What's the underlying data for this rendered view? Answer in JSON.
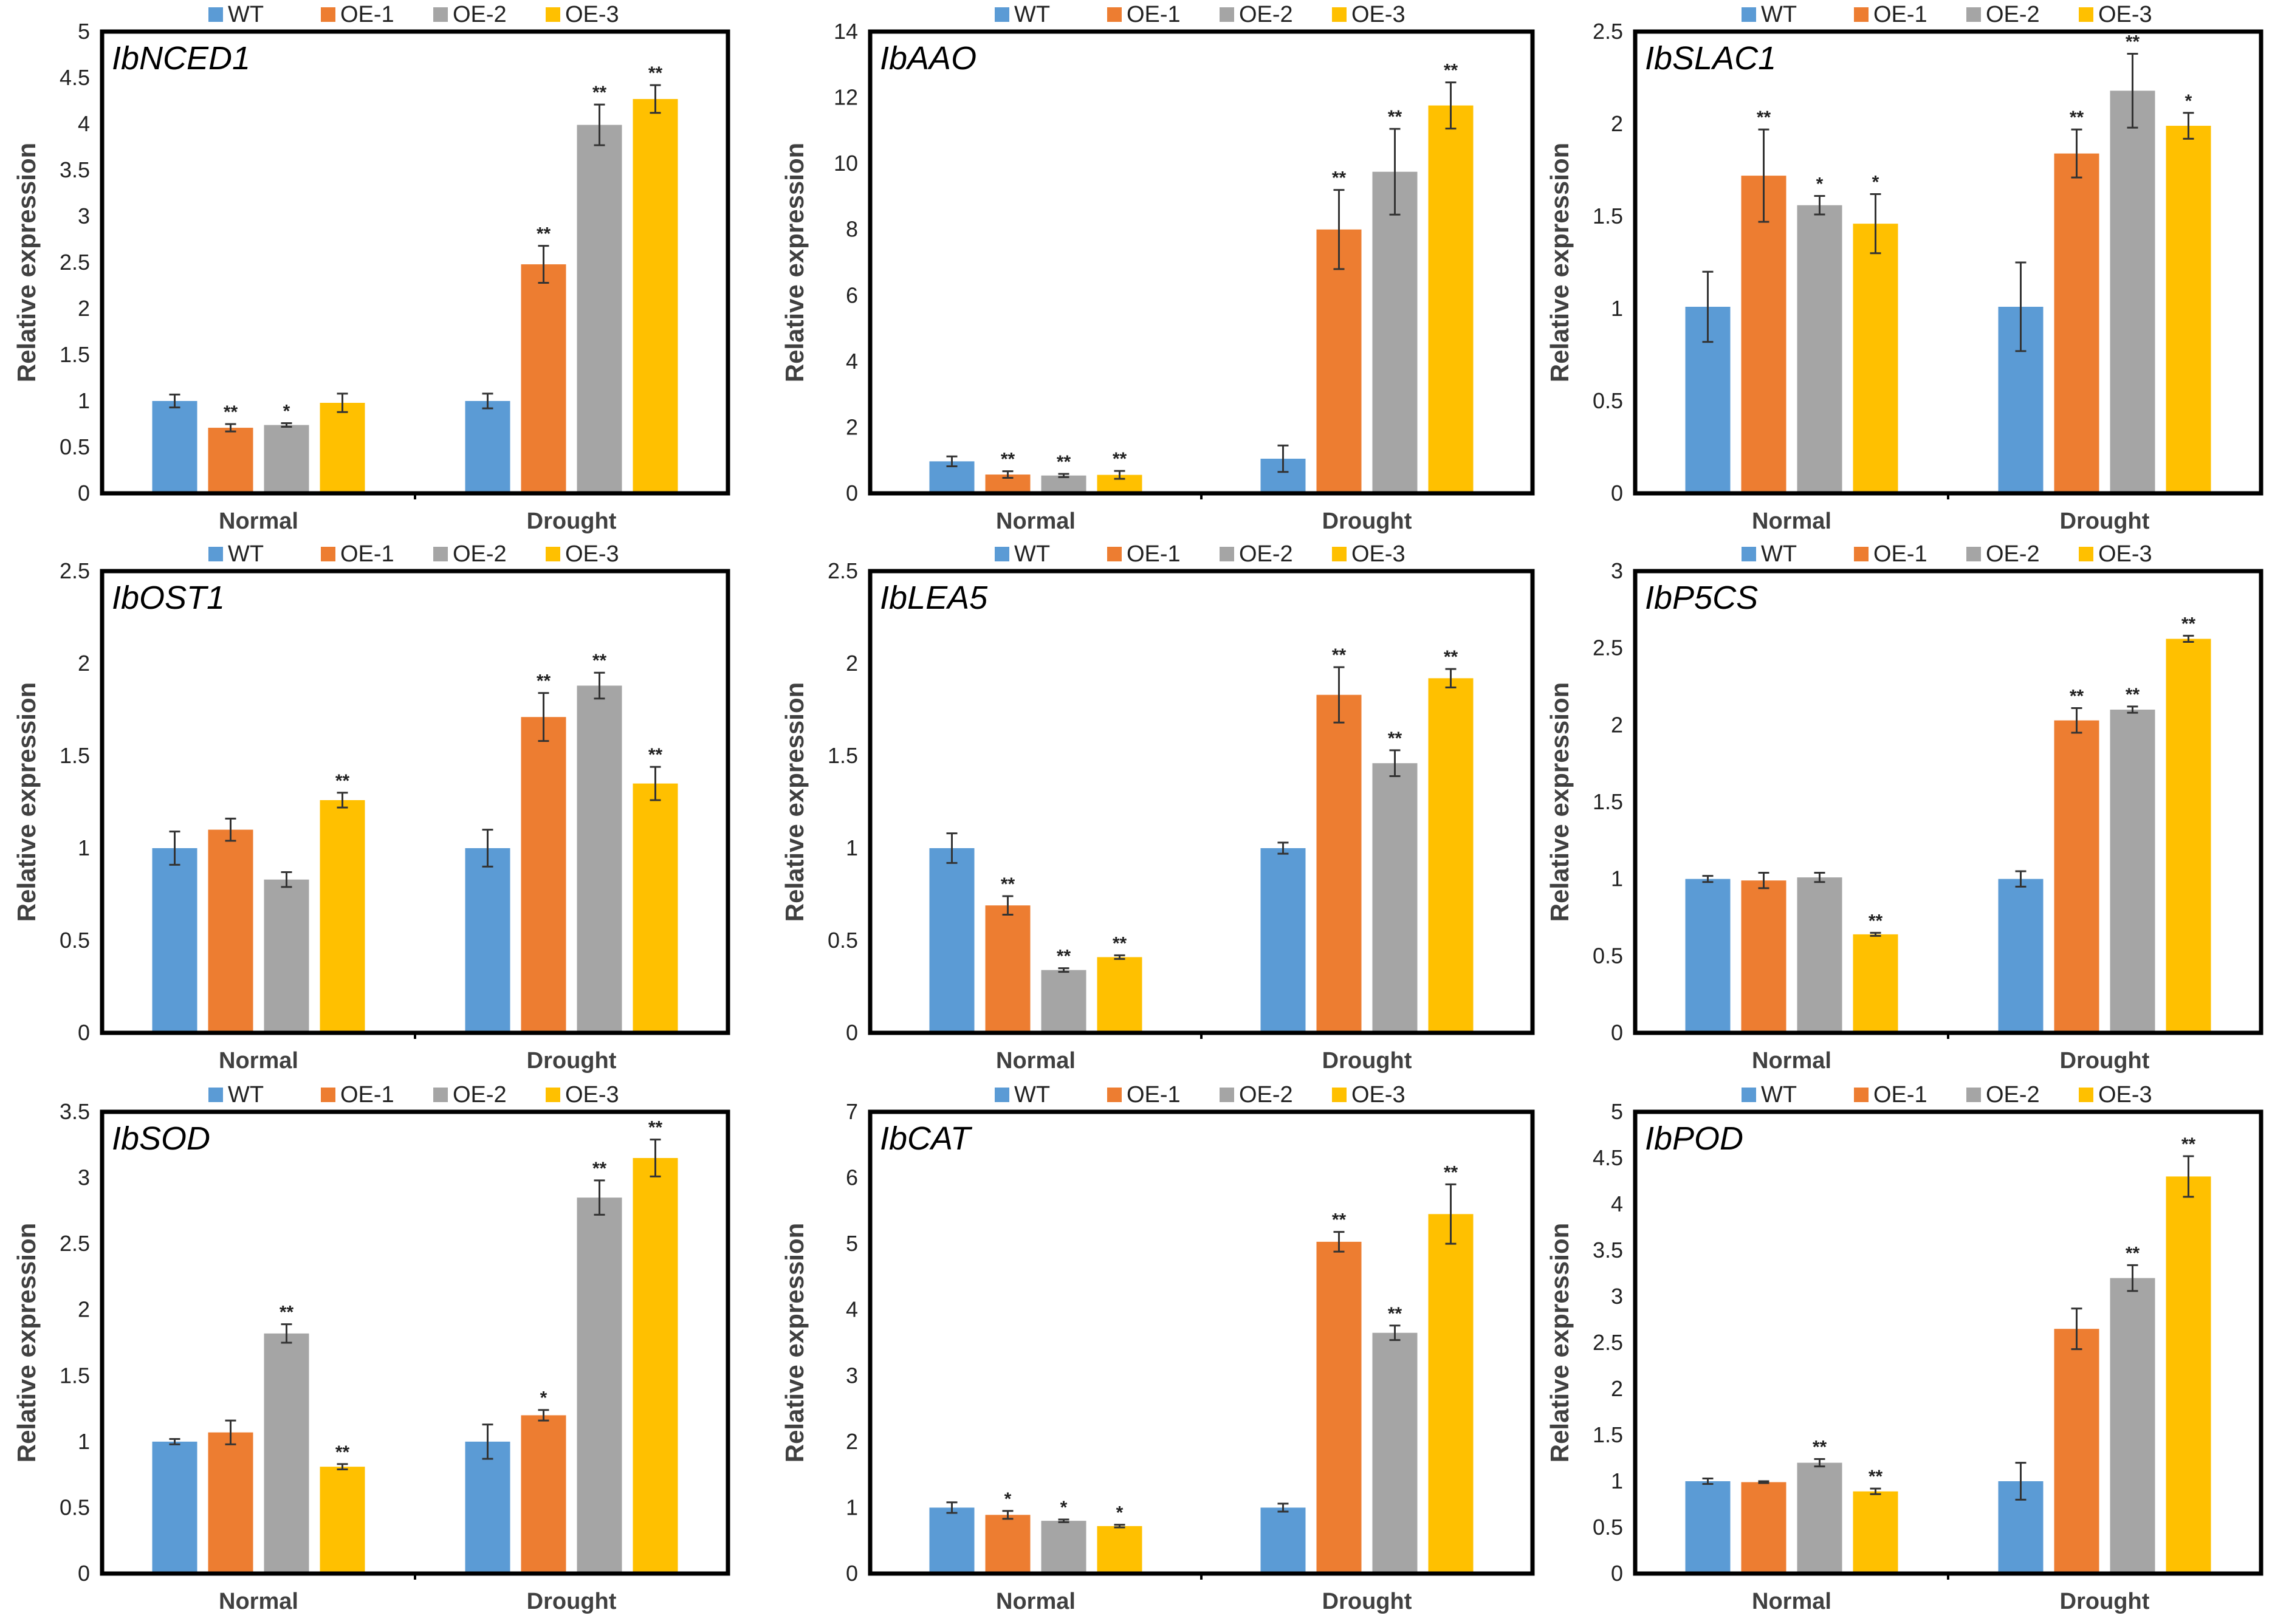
{
  "chart_data": [
    {
      "type": "bar",
      "title": "IbNCED1",
      "ylabel": "Relative expression",
      "categories": [
        "Normal",
        "Drought"
      ],
      "ylim": [
        0,
        5
      ],
      "yticks": [
        0,
        0.5,
        1,
        1.5,
        2,
        2.5,
        3,
        3.5,
        4,
        4.5,
        5
      ],
      "series": [
        {
          "name": "WT",
          "color": "#5b9bd5",
          "values": [
            1.0,
            1.0
          ],
          "errors": [
            0.07,
            0.08
          ],
          "sig": [
            "",
            ""
          ]
        },
        {
          "name": "OE-1",
          "color": "#ed7d31",
          "values": [
            0.71,
            2.48
          ],
          "errors": [
            0.04,
            0.2
          ],
          "sig": [
            "**",
            "**"
          ]
        },
        {
          "name": "OE-2",
          "color": "#a5a5a5",
          "values": [
            0.74,
            3.99
          ],
          "errors": [
            0.02,
            0.22
          ],
          "sig": [
            "*",
            "**"
          ]
        },
        {
          "name": "OE-3",
          "color": "#ffc000",
          "values": [
            0.98,
            4.27
          ],
          "errors": [
            0.1,
            0.15
          ],
          "sig": [
            "",
            "**"
          ]
        }
      ]
    },
    {
      "type": "bar",
      "title": "IbAAO",
      "ylabel": "Relative expression",
      "categories": [
        "Normal",
        "Drought"
      ],
      "ylim": [
        0,
        14
      ],
      "yticks": [
        0,
        2,
        4,
        6,
        8,
        10,
        12,
        14
      ],
      "series": [
        {
          "name": "WT",
          "color": "#5b9bd5",
          "values": [
            0.97,
            1.05
          ],
          "errors": [
            0.15,
            0.4
          ],
          "sig": [
            "",
            ""
          ]
        },
        {
          "name": "OE-1",
          "color": "#ed7d31",
          "values": [
            0.57,
            8.0
          ],
          "errors": [
            0.1,
            1.2
          ],
          "sig": [
            "**",
            "**"
          ]
        },
        {
          "name": "OE-2",
          "color": "#a5a5a5",
          "values": [
            0.54,
            9.75
          ],
          "errors": [
            0.05,
            1.3
          ],
          "sig": [
            "**",
            "**"
          ]
        },
        {
          "name": "OE-3",
          "color": "#ffc000",
          "values": [
            0.56,
            11.76
          ],
          "errors": [
            0.12,
            0.7
          ],
          "sig": [
            "**",
            "**"
          ]
        }
      ]
    },
    {
      "type": "bar",
      "title": "IbSLAC1",
      "ylabel": "Relative expression",
      "categories": [
        "Normal",
        "Drought"
      ],
      "ylim": [
        0,
        2.5
      ],
      "yticks": [
        0,
        0.5,
        1,
        1.5,
        2,
        2.5
      ],
      "series": [
        {
          "name": "WT",
          "color": "#5b9bd5",
          "values": [
            1.01,
            1.01
          ],
          "errors": [
            0.19,
            0.24
          ],
          "sig": [
            "",
            ""
          ]
        },
        {
          "name": "OE-1",
          "color": "#ed7d31",
          "values": [
            1.72,
            1.84
          ],
          "errors": [
            0.25,
            0.13
          ],
          "sig": [
            "**",
            "**"
          ]
        },
        {
          "name": "OE-2",
          "color": "#a5a5a5",
          "values": [
            1.56,
            2.18
          ],
          "errors": [
            0.05,
            0.2
          ],
          "sig": [
            "*",
            "**"
          ]
        },
        {
          "name": "OE-3",
          "color": "#ffc000",
          "values": [
            1.46,
            1.99
          ],
          "errors": [
            0.16,
            0.07
          ],
          "sig": [
            "*",
            "*"
          ]
        }
      ]
    },
    {
      "type": "bar",
      "title": "IbOST1",
      "ylabel": "Relative expression",
      "categories": [
        "Normal",
        "Drought"
      ],
      "ylim": [
        0,
        2.5
      ],
      "yticks": [
        0,
        0.5,
        1,
        1.5,
        2,
        2.5
      ],
      "series": [
        {
          "name": "WT",
          "color": "#5b9bd5",
          "values": [
            1.0,
            1.0
          ],
          "errors": [
            0.09,
            0.1
          ],
          "sig": [
            "",
            ""
          ]
        },
        {
          "name": "OE-1",
          "color": "#ed7d31",
          "values": [
            1.1,
            1.71
          ],
          "errors": [
            0.06,
            0.13
          ],
          "sig": [
            "",
            "**"
          ]
        },
        {
          "name": "OE-2",
          "color": "#a5a5a5",
          "values": [
            0.83,
            1.88
          ],
          "errors": [
            0.04,
            0.07
          ],
          "sig": [
            "",
            "**"
          ]
        },
        {
          "name": "OE-3",
          "color": "#ffc000",
          "values": [
            1.26,
            1.35
          ],
          "errors": [
            0.04,
            0.09
          ],
          "sig": [
            "**",
            "**"
          ]
        }
      ]
    },
    {
      "type": "bar",
      "title": "IbLEA5",
      "ylabel": "Relative expression",
      "categories": [
        "Normal",
        "Drought"
      ],
      "ylim": [
        0,
        2.5
      ],
      "yticks": [
        0,
        0.5,
        1,
        1.5,
        2,
        2.5
      ],
      "series": [
        {
          "name": "WT",
          "color": "#5b9bd5",
          "values": [
            1.0,
            1.0
          ],
          "errors": [
            0.08,
            0.03
          ],
          "sig": [
            "",
            ""
          ]
        },
        {
          "name": "OE-1",
          "color": "#ed7d31",
          "values": [
            0.69,
            1.83
          ],
          "errors": [
            0.05,
            0.15
          ],
          "sig": [
            "**",
            "**"
          ]
        },
        {
          "name": "OE-2",
          "color": "#a5a5a5",
          "values": [
            0.34,
            1.46
          ],
          "errors": [
            0.01,
            0.07
          ],
          "sig": [
            "**",
            "**"
          ]
        },
        {
          "name": "OE-3",
          "color": "#ffc000",
          "values": [
            0.41,
            1.92
          ],
          "errors": [
            0.01,
            0.05
          ],
          "sig": [
            "**",
            "**"
          ]
        }
      ]
    },
    {
      "type": "bar",
      "title": "IbP5CS",
      "ylabel": "Relative expression",
      "categories": [
        "Normal",
        "Drought"
      ],
      "ylim": [
        0,
        3
      ],
      "yticks": [
        0,
        0.5,
        1,
        1.5,
        2,
        2.5,
        3
      ],
      "series": [
        {
          "name": "WT",
          "color": "#5b9bd5",
          "values": [
            1.0,
            1.0
          ],
          "errors": [
            0.02,
            0.05
          ],
          "sig": [
            "",
            ""
          ]
        },
        {
          "name": "OE-1",
          "color": "#ed7d31",
          "values": [
            0.99,
            2.03
          ],
          "errors": [
            0.05,
            0.08
          ],
          "sig": [
            "",
            "**"
          ]
        },
        {
          "name": "OE-2",
          "color": "#a5a5a5",
          "values": [
            1.01,
            2.1
          ],
          "errors": [
            0.03,
            0.02
          ],
          "sig": [
            "",
            "**"
          ]
        },
        {
          "name": "OE-3",
          "color": "#ffc000",
          "values": [
            0.64,
            2.56
          ],
          "errors": [
            0.01,
            0.02
          ],
          "sig": [
            "**",
            "**"
          ]
        }
      ]
    },
    {
      "type": "bar",
      "title": "IbSOD",
      "ylabel": "Relative expression",
      "categories": [
        "Normal",
        "Drought"
      ],
      "ylim": [
        0,
        3.5
      ],
      "yticks": [
        0,
        0.5,
        1,
        1.5,
        2,
        2.5,
        3,
        3.5
      ],
      "series": [
        {
          "name": "WT",
          "color": "#5b9bd5",
          "values": [
            1.0,
            1.0
          ],
          "errors": [
            0.02,
            0.13
          ],
          "sig": [
            "",
            ""
          ]
        },
        {
          "name": "OE-1",
          "color": "#ed7d31",
          "values": [
            1.07,
            1.2
          ],
          "errors": [
            0.09,
            0.04
          ],
          "sig": [
            "",
            "*"
          ]
        },
        {
          "name": "OE-2",
          "color": "#a5a5a5",
          "values": [
            1.82,
            2.85
          ],
          "errors": [
            0.07,
            0.13
          ],
          "sig": [
            "**",
            "**"
          ]
        },
        {
          "name": "OE-3",
          "color": "#ffc000",
          "values": [
            0.81,
            3.15
          ],
          "errors": [
            0.02,
            0.14
          ],
          "sig": [
            "**",
            "**"
          ]
        }
      ]
    },
    {
      "type": "bar",
      "title": "IbCAT",
      "ylabel": "Relative expression",
      "categories": [
        "Normal",
        "Drought"
      ],
      "ylim": [
        0,
        7
      ],
      "yticks": [
        0,
        1,
        2,
        3,
        4,
        5,
        6,
        7
      ],
      "series": [
        {
          "name": "WT",
          "color": "#5b9bd5",
          "values": [
            1.0,
            1.0
          ],
          "errors": [
            0.08,
            0.06
          ],
          "sig": [
            "",
            ""
          ]
        },
        {
          "name": "OE-1",
          "color": "#ed7d31",
          "values": [
            0.89,
            5.03
          ],
          "errors": [
            0.06,
            0.15
          ],
          "sig": [
            "*",
            "**"
          ]
        },
        {
          "name": "OE-2",
          "color": "#a5a5a5",
          "values": [
            0.8,
            3.65
          ],
          "errors": [
            0.02,
            0.11
          ],
          "sig": [
            "*",
            "**"
          ]
        },
        {
          "name": "OE-3",
          "color": "#ffc000",
          "values": [
            0.72,
            5.45
          ],
          "errors": [
            0.02,
            0.45
          ],
          "sig": [
            "*",
            "**"
          ]
        }
      ]
    },
    {
      "type": "bar",
      "title": "IbPOD",
      "ylabel": "Relative expression",
      "categories": [
        "Normal",
        "Drought"
      ],
      "ylim": [
        0,
        5
      ],
      "yticks": [
        0,
        0.5,
        1,
        1.5,
        2,
        2.5,
        3,
        3.5,
        4,
        4.5,
        5
      ],
      "series": [
        {
          "name": "WT",
          "color": "#5b9bd5",
          "values": [
            1.0,
            1.0
          ],
          "errors": [
            0.03,
            0.2
          ],
          "sig": [
            "",
            ""
          ]
        },
        {
          "name": "OE-1",
          "color": "#ed7d31",
          "values": [
            0.99,
            2.65
          ],
          "errors": [
            0.01,
            0.22
          ],
          "sig": [
            "",
            ""
          ]
        },
        {
          "name": "OE-2",
          "color": "#a5a5a5",
          "values": [
            1.2,
            3.2
          ],
          "errors": [
            0.04,
            0.14
          ],
          "sig": [
            "**",
            "**"
          ]
        },
        {
          "name": "OE-3",
          "color": "#ffc000",
          "values": [
            0.89,
            4.3
          ],
          "errors": [
            0.03,
            0.22
          ],
          "sig": [
            "**",
            "**"
          ]
        }
      ]
    }
  ]
}
